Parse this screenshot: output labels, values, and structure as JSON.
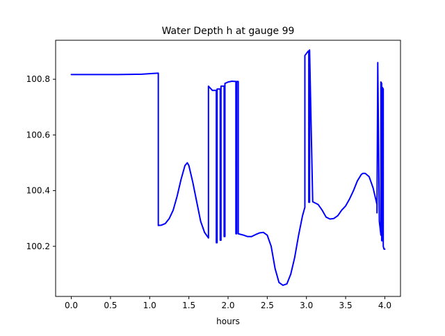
{
  "chart_data": {
    "type": "line",
    "title": "Water Depth h at gauge 99",
    "xlabel": "hours",
    "ylabel": "",
    "xlim": [
      -0.2,
      4.2
    ],
    "ylim": [
      100.02,
      100.94
    ],
    "x_ticks": [
      0.0,
      0.5,
      1.0,
      1.5,
      2.0,
      2.5,
      3.0,
      3.5,
      4.0
    ],
    "x_tick_labels": [
      "0.0",
      "0.5",
      "1.0",
      "1.5",
      "2.0",
      "2.5",
      "3.0",
      "3.5",
      "4.0"
    ],
    "y_ticks": [
      100.2,
      100.4,
      100.6,
      100.8
    ],
    "y_tick_labels": [
      "100.2",
      "100.4",
      "100.6",
      "100.8"
    ],
    "grid": false,
    "legend": "none",
    "series": [
      {
        "color": "#0000ff",
        "x": [
          0.0,
          0.3,
          0.6,
          0.9,
          1.05,
          1.11,
          1.11,
          1.15,
          1.2,
          1.25,
          1.3,
          1.35,
          1.4,
          1.45,
          1.48,
          1.5,
          1.55,
          1.6,
          1.65,
          1.7,
          1.75,
          1.75,
          1.8,
          1.85,
          1.85,
          1.86,
          1.86,
          1.9,
          1.9,
          1.91,
          1.91,
          1.95,
          1.95,
          1.96,
          1.96,
          2.0,
          2.05,
          2.1,
          2.1,
          2.11,
          2.11,
          2.13,
          2.13,
          2.2,
          2.25,
          2.3,
          2.35,
          2.4,
          2.45,
          2.5,
          2.55,
          2.6,
          2.65,
          2.7,
          2.75,
          2.8,
          2.85,
          2.9,
          2.95,
          2.98,
          2.98,
          3.02,
          3.03,
          3.03,
          3.04,
          3.04,
          3.08,
          3.15,
          3.2,
          3.25,
          3.3,
          3.35,
          3.4,
          3.45,
          3.5,
          3.55,
          3.6,
          3.65,
          3.7,
          3.72,
          3.75,
          3.8,
          3.85,
          3.9,
          3.9,
          3.91,
          3.91,
          3.93,
          3.95,
          3.95,
          3.96,
          3.96,
          3.97,
          3.97,
          3.98,
          3.98,
          3.99,
          4.0
        ],
        "y": [
          100.817,
          100.817,
          100.817,
          100.818,
          100.821,
          100.822,
          100.275,
          100.276,
          100.282,
          100.3,
          100.33,
          100.38,
          100.44,
          100.49,
          100.5,
          100.49,
          100.43,
          100.36,
          100.29,
          100.25,
          100.23,
          100.775,
          100.76,
          100.76,
          100.213,
          100.213,
          100.765,
          100.765,
          100.222,
          100.222,
          100.775,
          100.775,
          100.235,
          100.235,
          100.785,
          100.79,
          100.793,
          100.792,
          100.245,
          100.245,
          100.792,
          100.792,
          100.245,
          100.24,
          100.235,
          100.235,
          100.242,
          100.248,
          100.25,
          100.24,
          100.2,
          100.12,
          100.07,
          100.06,
          100.065,
          100.1,
          100.16,
          100.24,
          100.31,
          100.34,
          100.885,
          100.9,
          100.902,
          100.358,
          100.358,
          100.905,
          100.36,
          100.35,
          100.33,
          100.305,
          100.298,
          100.3,
          100.31,
          100.33,
          100.345,
          100.37,
          100.4,
          100.435,
          100.458,
          100.462,
          100.462,
          100.45,
          100.41,
          100.35,
          100.32,
          100.86,
          100.855,
          100.29,
          100.24,
          100.79,
          100.785,
          100.22,
          100.22,
          100.77,
          100.765,
          100.2,
          100.19,
          100.19
        ]
      }
    ]
  }
}
